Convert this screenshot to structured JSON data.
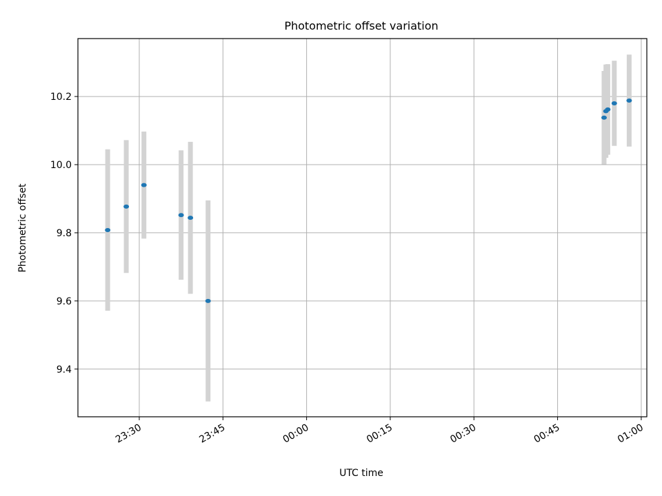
{
  "chart_data": {
    "type": "scatter",
    "title": "Photometric offset variation",
    "xlabel": "UTC time",
    "ylabel": "Photometric offset",
    "x_axis": {
      "type": "time",
      "min": "23:19:00",
      "max": "01:01:00",
      "ticks": [
        "23:30",
        "23:45",
        "00:00",
        "00:15",
        "00:30",
        "00:45",
        "01:00"
      ]
    },
    "ylim": [
      9.26,
      10.37
    ],
    "y_ticks": [
      9.4,
      9.6,
      9.8,
      10.0,
      10.2
    ],
    "y_tick_labels": [
      "9.4",
      "9.6",
      "9.8",
      "10.0",
      "10.2"
    ],
    "grid": true,
    "colors": {
      "point": "#1f77b4",
      "errorbar": "#d3d3d3",
      "grid": "#b0b0b0"
    },
    "points": [
      {
        "time": "23:24:20",
        "y": 9.808,
        "err": 0.237
      },
      {
        "time": "23:27:40",
        "y": 9.877,
        "err": 0.195
      },
      {
        "time": "23:30:50",
        "y": 9.94,
        "err": 0.157
      },
      {
        "time": "23:37:30",
        "y": 9.852,
        "err": 0.19
      },
      {
        "time": "23:39:10",
        "y": 9.844,
        "err": 0.223
      },
      {
        "time": "23:42:20",
        "y": 9.6,
        "err": 0.295
      },
      {
        "time": "00:53:20",
        "y": 10.138,
        "err": 0.137
      },
      {
        "time": "00:53:40",
        "y": 10.157,
        "err": 0.137
      },
      {
        "time": "00:54:00",
        "y": 10.162,
        "err": 0.133
      },
      {
        "time": "00:55:10",
        "y": 10.18,
        "err": 0.125
      },
      {
        "time": "00:57:50",
        "y": 10.188,
        "err": 0.135
      }
    ]
  }
}
